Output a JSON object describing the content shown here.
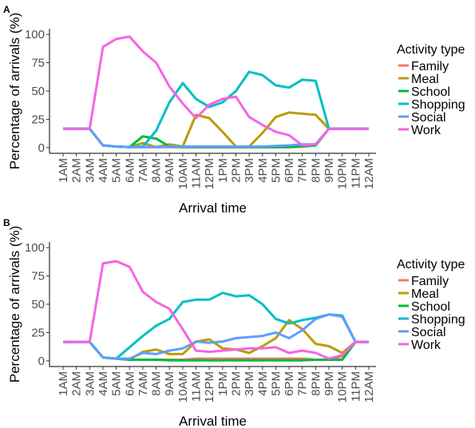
{
  "chart_data": [
    {
      "panel": "A",
      "type": "line",
      "x_label": "Arrival time",
      "y_label": "Percentage of arrivals (%)",
      "legend_title": "Activity type",
      "categories": [
        "1AM",
        "2AM",
        "3AM",
        "4AM",
        "5AM",
        "6AM",
        "7AM",
        "8AM",
        "9AM",
        "10AM",
        "11AM",
        "12PM",
        "1PM",
        "2PM",
        "3PM",
        "4PM",
        "5PM",
        "6PM",
        "7PM",
        "8PM",
        "9PM",
        "10PM",
        "11PM",
        "12AM"
      ],
      "ylim": [
        -5,
        105
      ],
      "yticks": [
        0,
        25,
        50,
        75,
        100
      ],
      "series": [
        {
          "name": "Family",
          "color": "#F8766D",
          "values": [
            16.7,
            16.7,
            16.7,
            2,
            1,
            0.5,
            0.5,
            0.5,
            0.5,
            0.5,
            0.5,
            0.5,
            0.5,
            0.5,
            0.5,
            0.5,
            0.5,
            0.5,
            1,
            2,
            16.7,
            16.7,
            16.7,
            16.7
          ]
        },
        {
          "name": "Meal",
          "color": "#B79F00",
          "values": [
            16.7,
            16.7,
            16.7,
            2,
            1,
            0.5,
            4,
            0.5,
            3,
            1,
            29,
            26,
            14,
            1,
            1,
            13,
            27,
            31,
            30,
            29,
            16.7,
            16.7,
            16.7,
            16.7
          ]
        },
        {
          "name": "School",
          "color": "#00BA38",
          "values": [
            16.7,
            16.7,
            16.7,
            2,
            1,
            0.5,
            10,
            8,
            1,
            0.5,
            0.5,
            0.5,
            0.5,
            0.5,
            0.5,
            0.5,
            0.5,
            0.5,
            1,
            2,
            16.7,
            16.7,
            16.7,
            16.7
          ]
        },
        {
          "name": "Shopping",
          "color": "#00BFC4",
          "values": [
            16.7,
            16.7,
            16.7,
            2,
            1,
            0.5,
            1,
            15,
            40,
            57,
            43,
            36,
            40,
            50,
            67,
            64,
            55,
            53,
            60,
            59,
            16.7,
            16.7,
            16.7,
            16.7
          ]
        },
        {
          "name": "Social",
          "color": "#619CFF",
          "values": [
            16.7,
            16.7,
            16.7,
            2,
            1,
            0.5,
            0.5,
            0.5,
            1,
            1,
            1,
            1,
            1,
            1,
            1,
            1,
            1.5,
            2,
            3,
            3,
            16.7,
            16.7,
            16.7,
            16.7
          ]
        },
        {
          "name": "Work",
          "color": "#F564E3",
          "values": [
            16.7,
            16.7,
            16.7,
            89,
            96,
            98,
            85,
            75,
            54,
            39,
            26,
            38,
            43,
            45,
            27,
            20,
            14,
            11,
            2,
            3,
            16.7,
            16.7,
            16.7,
            16.7
          ]
        }
      ]
    },
    {
      "panel": "B",
      "type": "line",
      "x_label": "Arrival time",
      "y_label": "Percentage of arrivals (%)",
      "legend_title": "Activity type",
      "categories": [
        "1AM",
        "2AM",
        "3AM",
        "4AM",
        "5AM",
        "6AM",
        "7AM",
        "8AM",
        "9AM",
        "10AM",
        "11AM",
        "12PM",
        "1PM",
        "2PM",
        "3PM",
        "4PM",
        "5PM",
        "6PM",
        "7PM",
        "8PM",
        "9PM",
        "10PM",
        "11PM",
        "12AM"
      ],
      "ylim": [
        -5,
        105
      ],
      "yticks": [
        0,
        25,
        50,
        75,
        100
      ],
      "series": [
        {
          "name": "Family",
          "color": "#F8766D",
          "values": [
            16.7,
            16.7,
            16.7,
            3,
            2,
            1,
            1,
            1,
            1,
            1,
            2,
            2,
            2,
            2,
            2,
            2,
            2,
            2,
            2,
            1,
            1,
            4,
            16.7,
            16.7
          ]
        },
        {
          "name": "Meal",
          "color": "#B79F00",
          "values": [
            16.7,
            16.7,
            16.7,
            3,
            2,
            1,
            8,
            10,
            6,
            6,
            17,
            19,
            11,
            10,
            7,
            13,
            20,
            36,
            28,
            15,
            13,
            7,
            16.7,
            16.7
          ]
        },
        {
          "name": "School",
          "color": "#00BA38",
          "values": [
            16.7,
            16.7,
            16.7,
            3,
            2,
            1,
            1,
            1,
            0.5,
            0.5,
            0.5,
            0.5,
            0.5,
            0.5,
            0.5,
            0.5,
            0.5,
            0.5,
            0.5,
            1,
            1,
            1,
            16.7,
            16.7
          ]
        },
        {
          "name": "Shopping",
          "color": "#00BFC4",
          "values": [
            16.7,
            16.7,
            16.7,
            3,
            2,
            12,
            22,
            31,
            37,
            52,
            54,
            54,
            60,
            57,
            58,
            50,
            37,
            33,
            36,
            38,
            41,
            40,
            16.7,
            16.7
          ]
        },
        {
          "name": "Social",
          "color": "#619CFF",
          "values": [
            16.7,
            16.7,
            16.7,
            3,
            2,
            2,
            7,
            6,
            9,
            11,
            17,
            16,
            17,
            20,
            21,
            22,
            25,
            20,
            27,
            37,
            41,
            39,
            16.7,
            16.7
          ]
        },
        {
          "name": "Work",
          "color": "#F564E3",
          "values": [
            16.7,
            16.7,
            16.7,
            86,
            88,
            83,
            61,
            52,
            46,
            28,
            9,
            8,
            9,
            10,
            11,
            11,
            12,
            7,
            9,
            7,
            2,
            5,
            16.7,
            16.7
          ]
        }
      ]
    }
  ]
}
